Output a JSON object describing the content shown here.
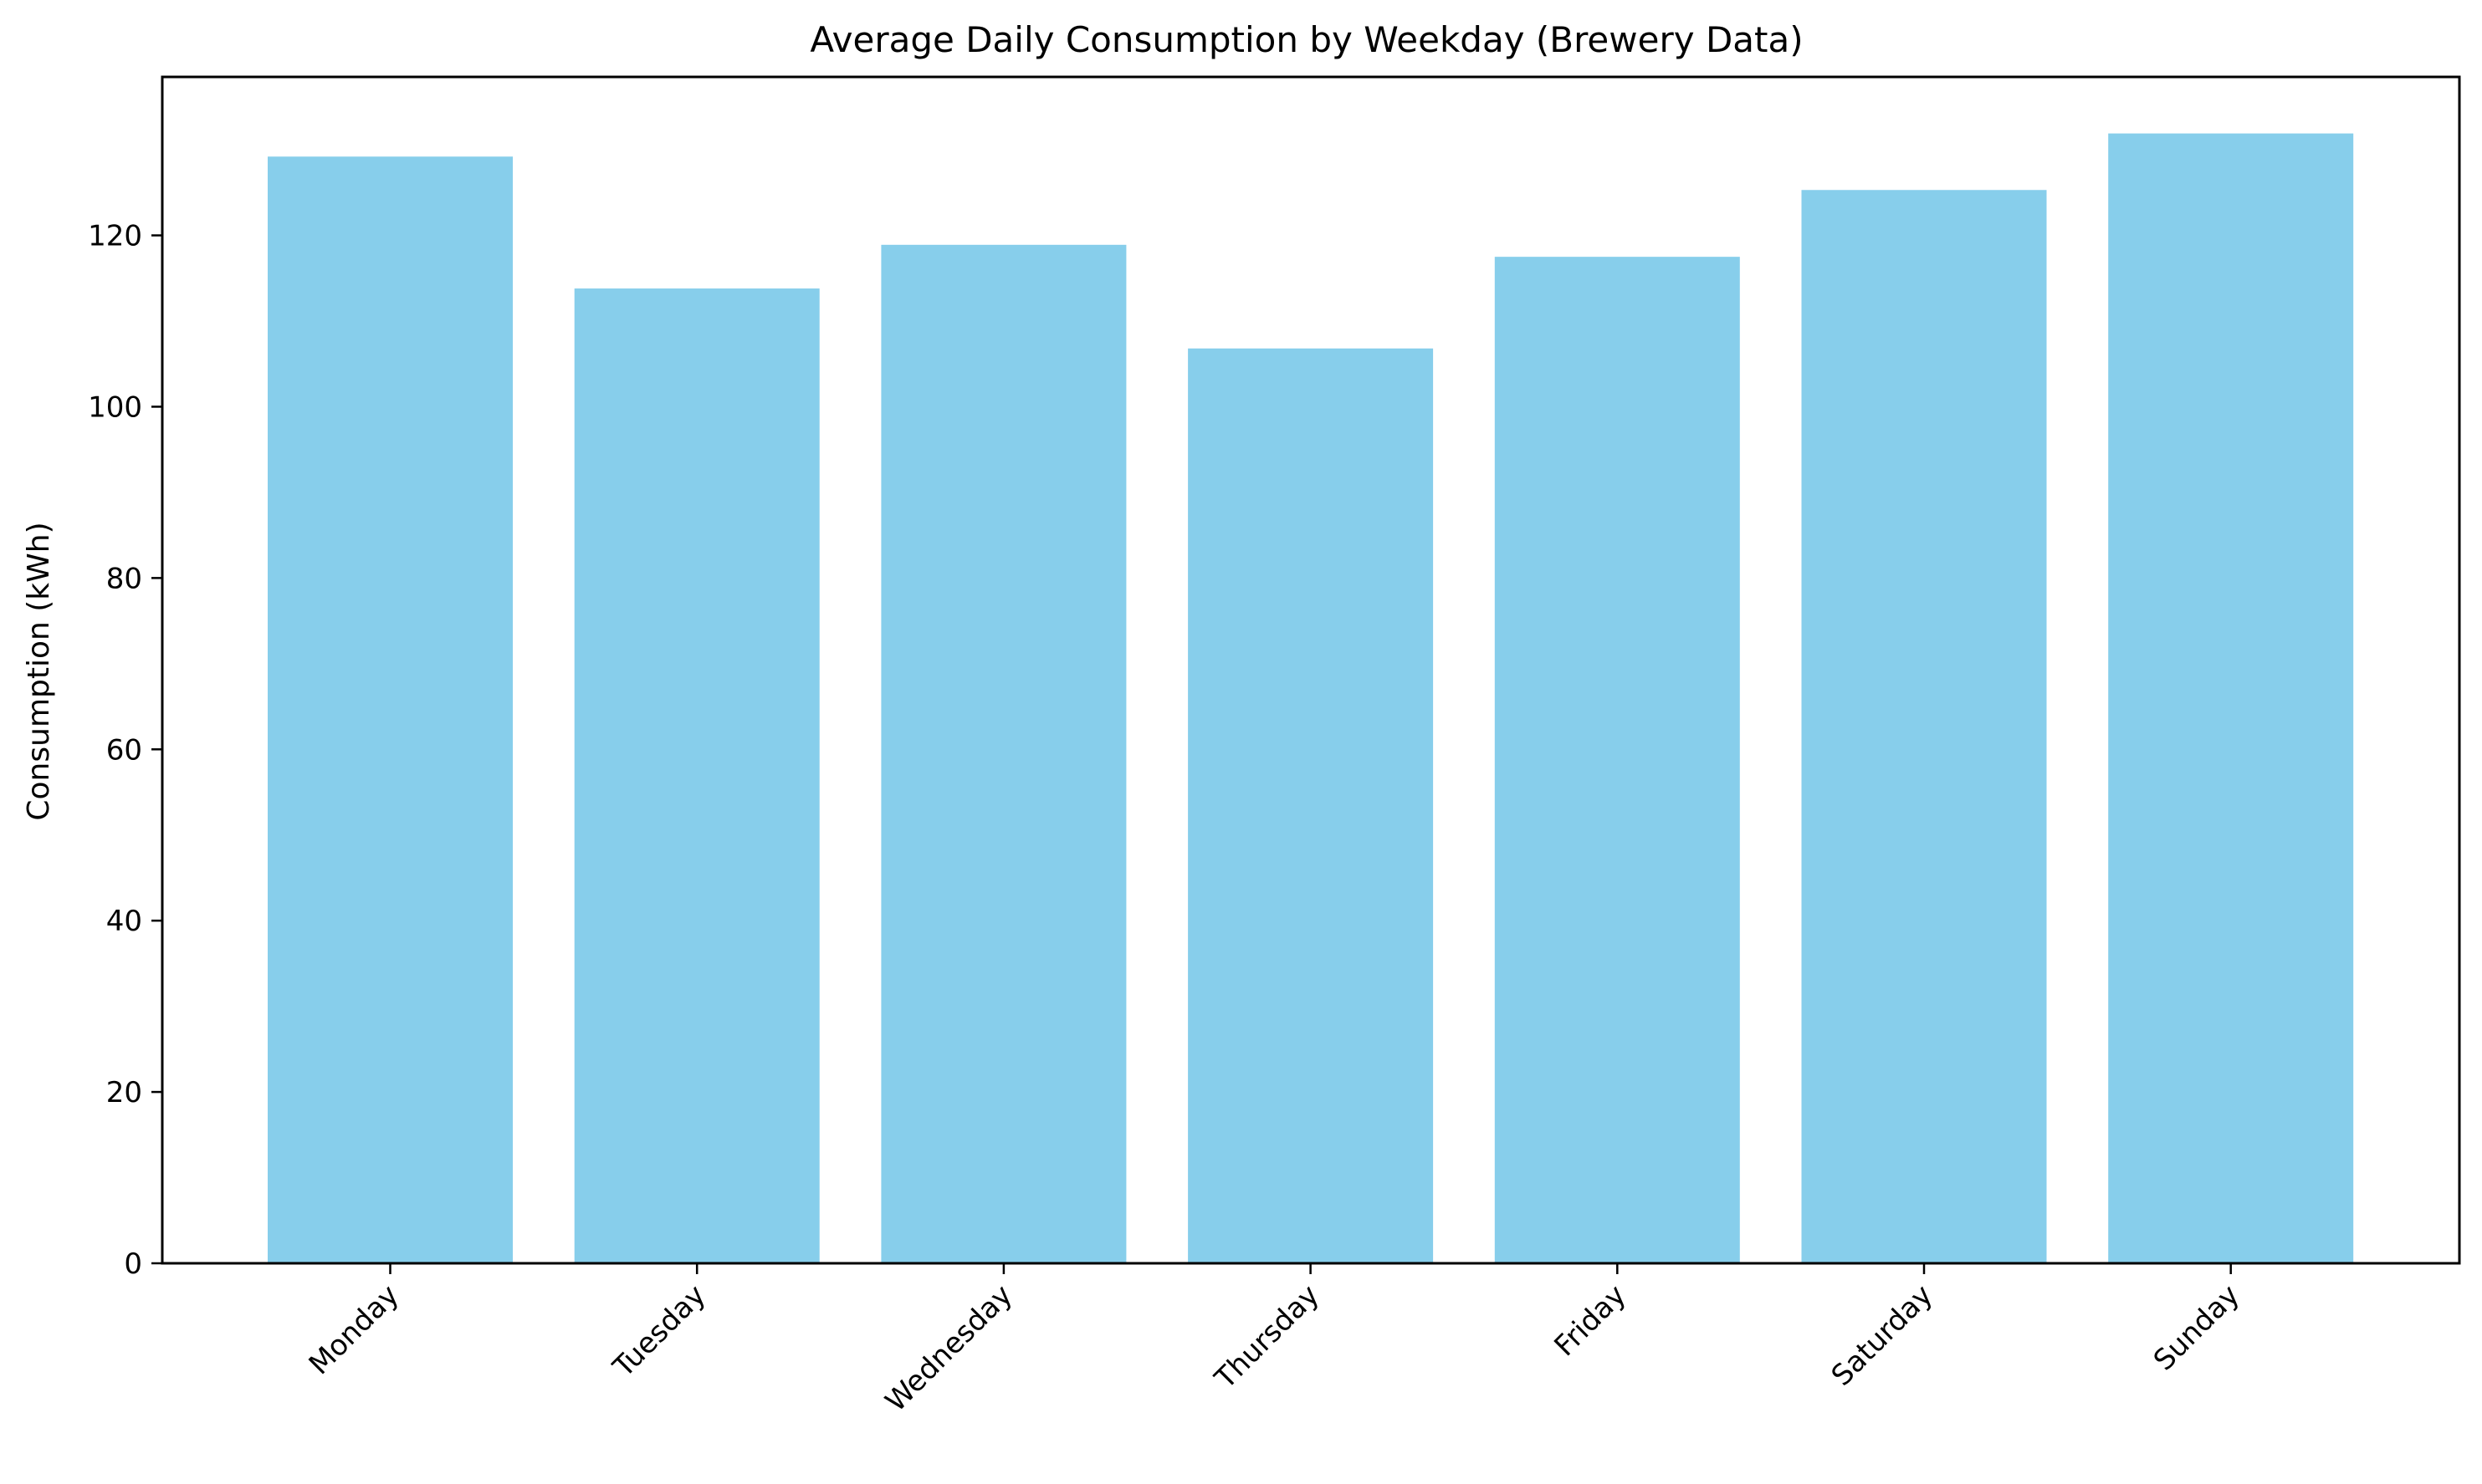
{
  "chart_data": {
    "type": "bar",
    "title": "Average Daily Consumption by Weekday (Brewery Data)",
    "xlabel": "",
    "ylabel": "Consumption (kWh)",
    "categories": [
      "Monday",
      "Tuesday",
      "Wednesday",
      "Thursday",
      "Friday",
      "Saturday",
      "Sunday"
    ],
    "values": [
      129.2,
      113.8,
      118.9,
      106.8,
      117.5,
      125.3,
      131.9
    ],
    "ylim": [
      0,
      138.5
    ],
    "yticks": [
      "0",
      "20",
      "40",
      "60",
      "80",
      "100",
      "120"
    ],
    "bar_color": "#87CEEB",
    "grid": false,
    "legend": "none"
  }
}
